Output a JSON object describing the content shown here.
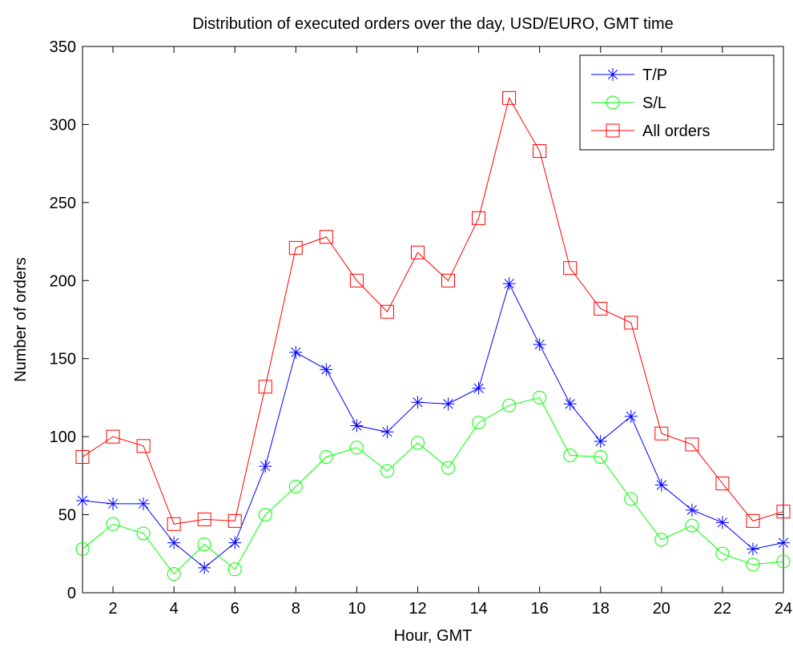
{
  "chart_data": {
    "type": "line",
    "title": "Distribution of executed orders over the day, USD/EURO, GMT time",
    "xlabel": "Hour, GMT",
    "ylabel": "Number of orders",
    "xlim": [
      1,
      24
    ],
    "ylim": [
      0,
      350
    ],
    "xticks": [
      2,
      4,
      6,
      8,
      10,
      12,
      14,
      16,
      18,
      20,
      22,
      24
    ],
    "yticks": [
      0,
      50,
      100,
      150,
      200,
      250,
      300,
      350
    ],
    "grid": false,
    "legend_position": "top-right",
    "x": [
      1,
      2,
      3,
      4,
      5,
      6,
      7,
      8,
      9,
      10,
      11,
      12,
      13,
      14,
      15,
      16,
      17,
      18,
      19,
      20,
      21,
      22,
      23,
      24
    ],
    "series": [
      {
        "name": "T/P",
        "color": "#0000ff",
        "marker": "asterisk",
        "values": [
          59,
          57,
          57,
          32,
          16,
          32,
          81,
          154,
          143,
          107,
          103,
          122,
          121,
          131,
          198,
          159,
          121,
          97,
          113,
          69,
          53,
          45,
          28,
          32
        ]
      },
      {
        "name": "S/L",
        "color": "#00ff00",
        "marker": "circle",
        "values": [
          28,
          44,
          38,
          12,
          31,
          15,
          50,
          68,
          87,
          93,
          78,
          96,
          80,
          109,
          120,
          125,
          88,
          87,
          60,
          34,
          43,
          25,
          18,
          20
        ]
      },
      {
        "name": "All orders",
        "color": "#ff0000",
        "marker": "square",
        "values": [
          87,
          100,
          94,
          44,
          47,
          46,
          132,
          221,
          228,
          200,
          180,
          218,
          200,
          240,
          317,
          283,
          208,
          182,
          173,
          102,
          95,
          70,
          46,
          52
        ]
      }
    ]
  }
}
